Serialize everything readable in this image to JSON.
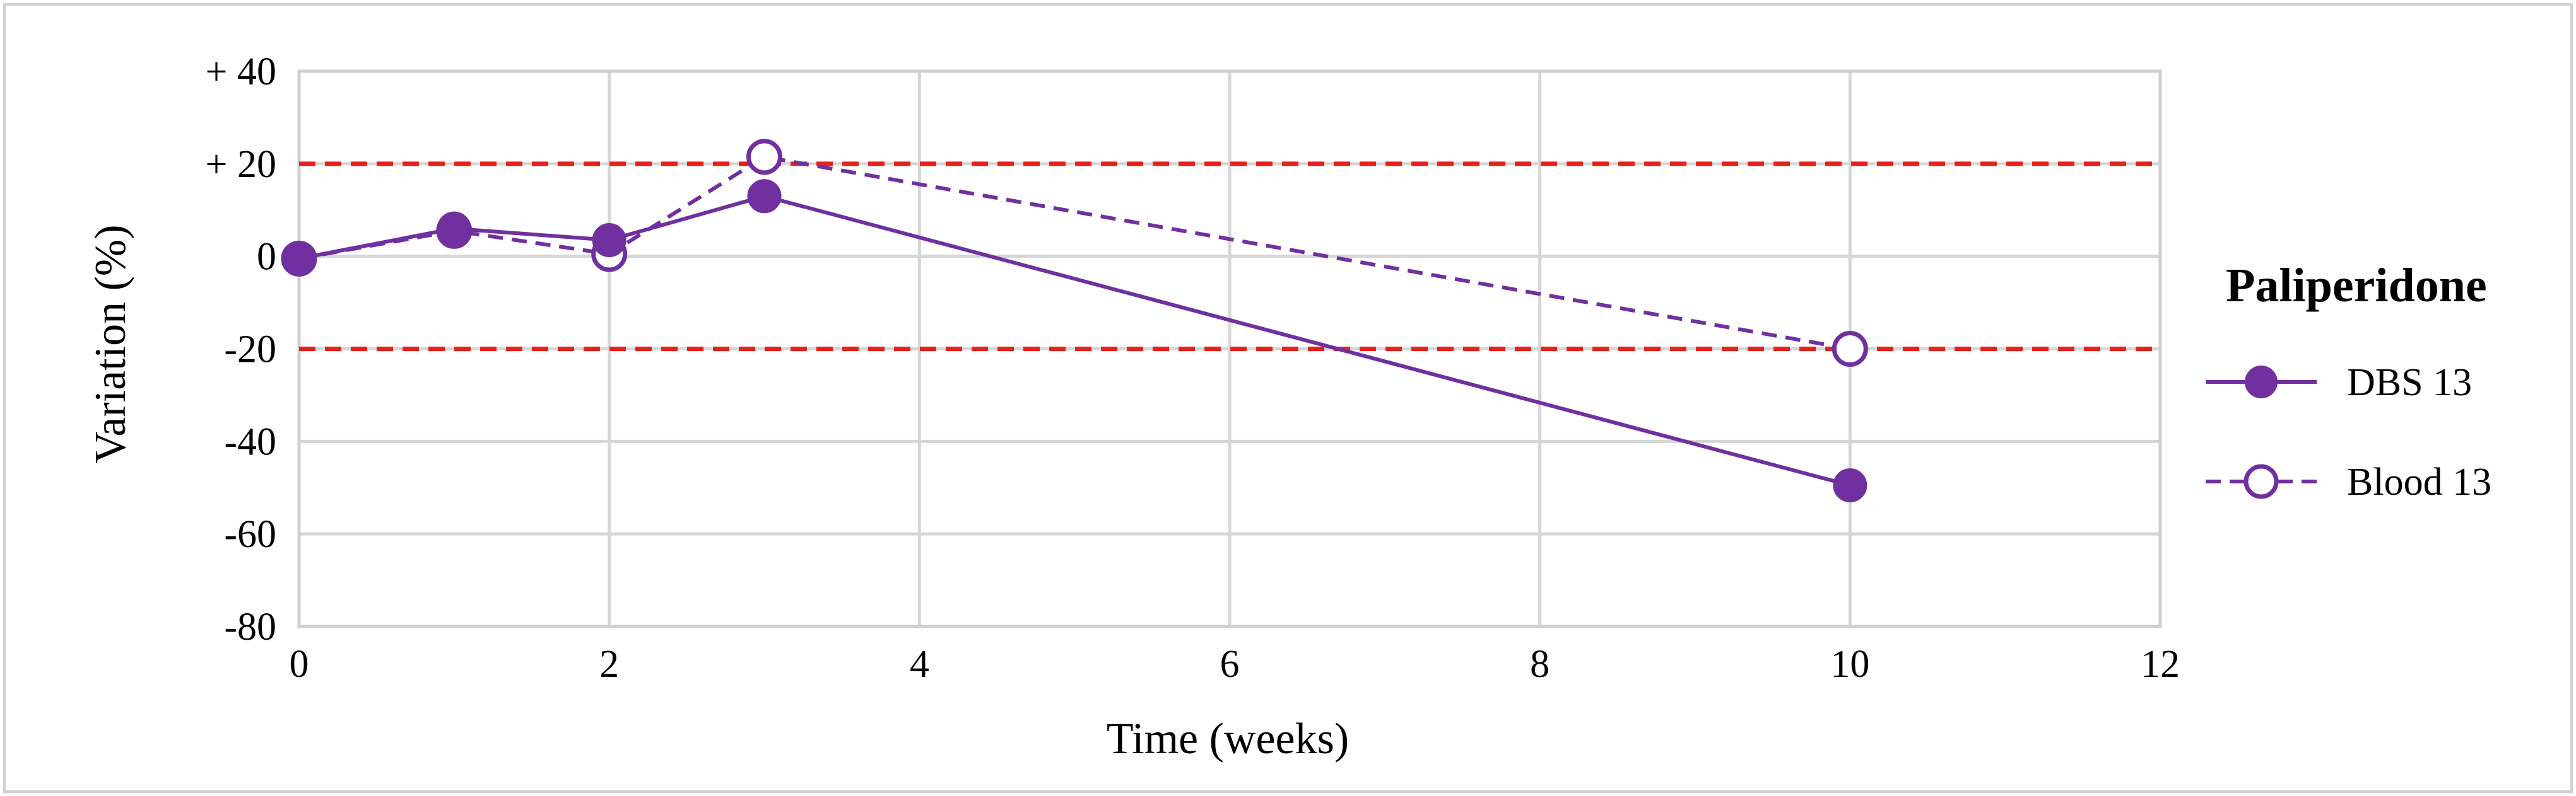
{
  "chart_data": {
    "type": "line",
    "xlabel": "Time (weeks)",
    "ylabel": "Variation (%)",
    "xlim": [
      0,
      12
    ],
    "ylim": [
      -80,
      40
    ],
    "xticks": [
      0,
      2,
      4,
      6,
      8,
      10,
      12
    ],
    "xtick_labels": [
      "0",
      "2",
      "4",
      "6",
      "8",
      "10",
      "12"
    ],
    "yticks": [
      40,
      20,
      0,
      -20,
      -40,
      -60,
      -80
    ],
    "ytick_labels": [
      "+ 40",
      "+ 20",
      "0",
      "-20",
      "-40",
      "-60",
      "-80"
    ],
    "grid": true,
    "legend": {
      "title": "Paliperidone",
      "position": "right"
    },
    "reference_lines": [
      {
        "y": 20,
        "color": "#e8201c",
        "style": "dashed"
      },
      {
        "y": -20,
        "color": "#e8201c",
        "style": "dashed"
      }
    ],
    "series": [
      {
        "name": "DBS 13",
        "x": [
          0,
          1,
          2,
          3,
          10
        ],
        "y": [
          -0.5,
          6,
          3.5,
          13,
          -49.5
        ],
        "color": "#7030a0",
        "line_style": "solid",
        "marker": "filled-circle"
      },
      {
        "name": "Blood 13",
        "x": [
          0,
          1,
          2,
          3,
          10
        ],
        "y": [
          -0.5,
          5.5,
          0.5,
          21.5,
          -20
        ],
        "color": "#7030a0",
        "line_style": "dashed",
        "marker": "open-circle"
      }
    ]
  }
}
